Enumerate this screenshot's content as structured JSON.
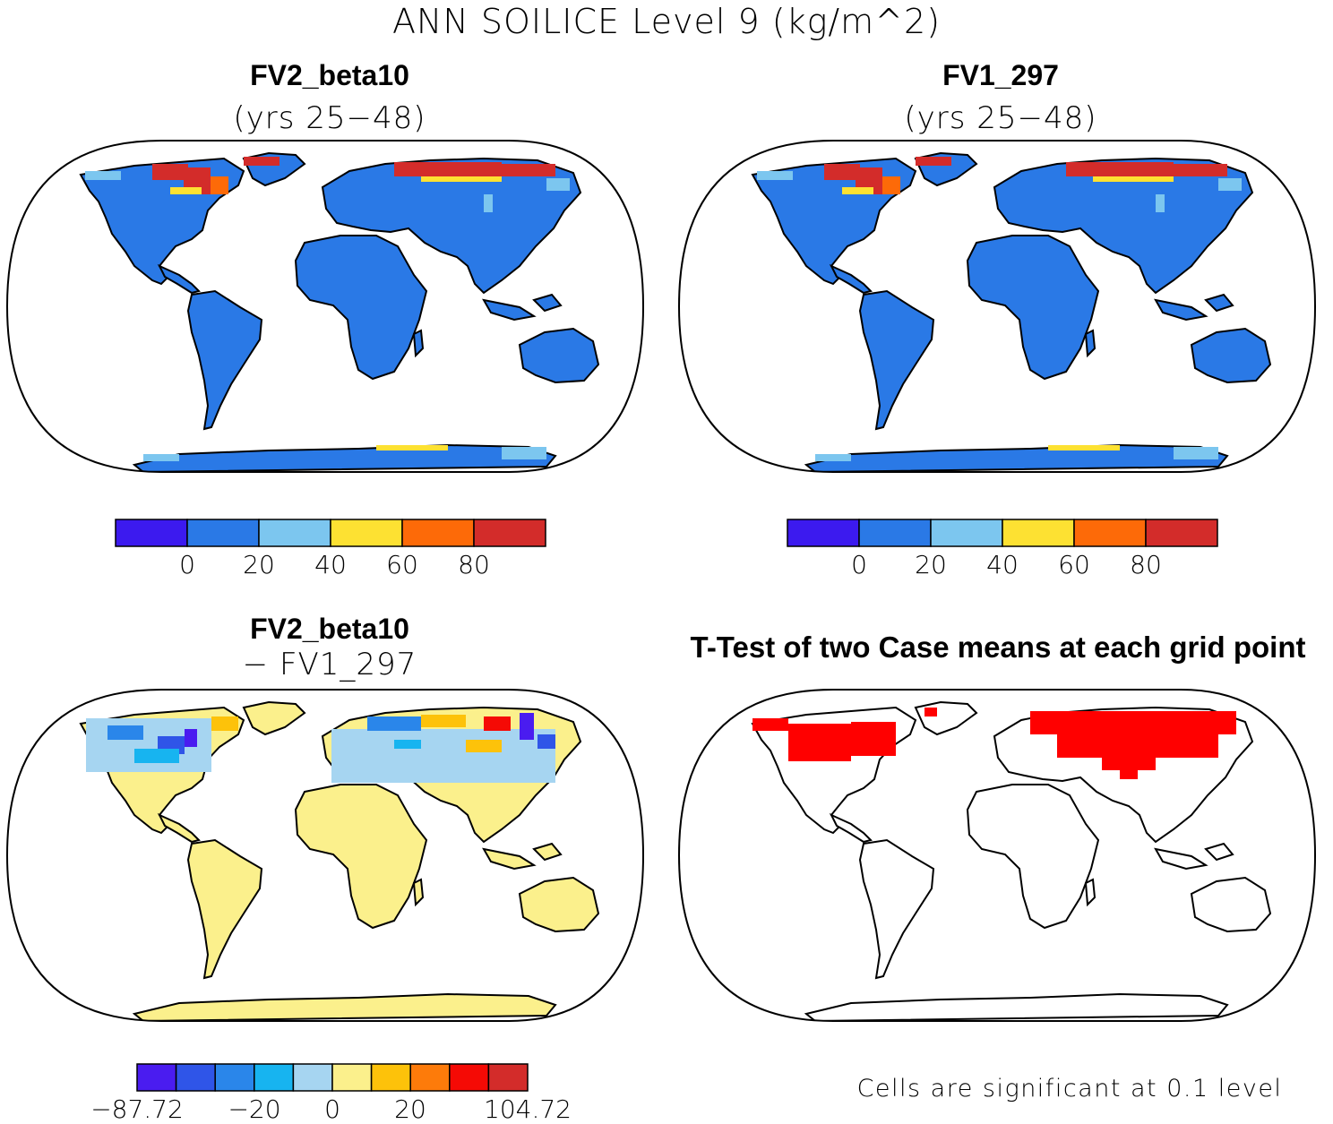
{
  "figure": {
    "title": "ANN SOILICE Level 9 (kg/m^2)"
  },
  "panels": [
    {
      "id": "case1",
      "title": "FV2_beta10",
      "subtitle": "(yrs 25−48)",
      "colorbar": {
        "colors": [
          "#3c1aef",
          "#2a79e6",
          "#7cc6ef",
          "#fde132",
          "#fd6a08",
          "#d32c2a"
        ],
        "tick_labels": [
          "0",
          "20",
          "40",
          "60",
          "80"
        ]
      }
    },
    {
      "id": "case2",
      "title": "FV1_297",
      "subtitle": "(yrs 25−48)",
      "colorbar": {
        "colors": [
          "#3c1aef",
          "#2a79e6",
          "#7cc6ef",
          "#fde132",
          "#fd6a08",
          "#d32c2a"
        ],
        "tick_labels": [
          "0",
          "20",
          "40",
          "60",
          "80"
        ]
      }
    },
    {
      "id": "difference",
      "title": "FV2_beta10",
      "subtitle": "− FV1_297",
      "colorbar": {
        "colors": [
          "#4a1cf0",
          "#2f55e8",
          "#2a86ea",
          "#17b4f0",
          "#a6d5f1",
          "#fbf08c",
          "#fdc20a",
          "#fd7b0a",
          "#f50a05",
          "#d32c2a"
        ],
        "tick_labels": [
          "−87.72",
          "−20",
          "0",
          "20",
          "104.72"
        ]
      }
    },
    {
      "id": "ttest",
      "title": "T-Test of two Case means at each grid point",
      "note": "Cells are significant at 0.1 level",
      "significant_color": "#ff0000"
    }
  ],
  "map_colors": {
    "land_case": "#2a79e6",
    "land_diff": "#fbf08c",
    "coast": "#000000"
  }
}
